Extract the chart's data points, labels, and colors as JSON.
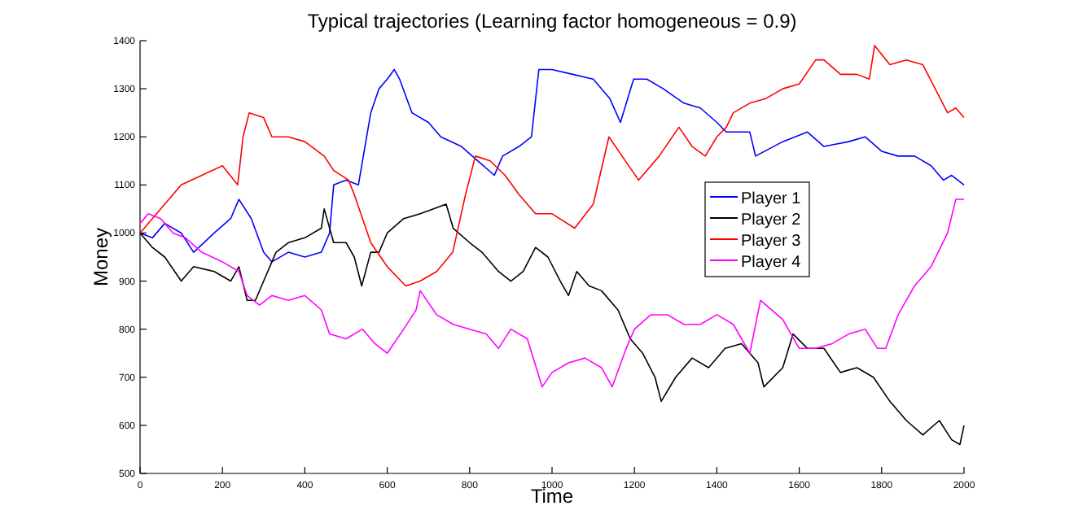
{
  "chart_data": {
    "type": "line",
    "title": "Typical trajectories (Learning factor homogeneous = 0.9)",
    "xlabel": "Time",
    "ylabel": "Money",
    "xlim": [
      0,
      2000
    ],
    "ylim": [
      500,
      1400
    ],
    "xticks": [
      0,
      200,
      400,
      600,
      800,
      1000,
      1200,
      1400,
      1600,
      1800,
      2000
    ],
    "yticks": [
      500,
      600,
      700,
      800,
      900,
      1000,
      1100,
      1200,
      1300,
      1400
    ],
    "grid": false,
    "legend": "right",
    "marker": "none",
    "line_style": "solid",
    "series": [
      {
        "name": "Player 1",
        "color": "#0000ff",
        "x": [
          0,
          30,
          60,
          100,
          130,
          180,
          220,
          240,
          270,
          300,
          320,
          360,
          400,
          440,
          460,
          470,
          500,
          530,
          560,
          580,
          600,
          617,
          630,
          660,
          700,
          730,
          780,
          820,
          860,
          880,
          920,
          950,
          968,
          1000,
          1050,
          1100,
          1140,
          1166,
          1198,
          1230,
          1270,
          1320,
          1360,
          1400,
          1423,
          1480,
          1494,
          1560,
          1620,
          1660,
          1720,
          1760,
          1800,
          1840,
          1880,
          1920,
          1950,
          1970,
          2000
        ],
        "values": [
          1000,
          990,
          1020,
          1000,
          960,
          1000,
          1030,
          1070,
          1030,
          960,
          940,
          960,
          950,
          960,
          1000,
          1100,
          1110,
          1100,
          1250,
          1300,
          1320,
          1340,
          1320,
          1250,
          1230,
          1200,
          1180,
          1150,
          1120,
          1160,
          1180,
          1200,
          1340,
          1340,
          1330,
          1320,
          1280,
          1230,
          1320,
          1320,
          1300,
          1270,
          1260,
          1230,
          1210,
          1210,
          1160,
          1190,
          1210,
          1180,
          1190,
          1200,
          1170,
          1160,
          1160,
          1140,
          1110,
          1120,
          1100
        ]
      },
      {
        "name": "Player 2",
        "color": "#000000",
        "x": [
          0,
          30,
          60,
          100,
          130,
          180,
          220,
          240,
          260,
          280,
          300,
          330,
          360,
          400,
          440,
          447,
          470,
          500,
          520,
          538,
          560,
          580,
          600,
          640,
          680,
          743,
          760,
          800,
          830,
          870,
          900,
          930,
          960,
          990,
          1020,
          1040,
          1060,
          1090,
          1120,
          1160,
          1190,
          1220,
          1250,
          1265,
          1300,
          1340,
          1380,
          1420,
          1460,
          1500,
          1514,
          1560,
          1585,
          1620,
          1660,
          1700,
          1740,
          1780,
          1820,
          1860,
          1900,
          1940,
          1970,
          1990,
          2000
        ],
        "values": [
          1000,
          970,
          950,
          900,
          930,
          920,
          900,
          930,
          860,
          860,
          900,
          960,
          980,
          990,
          1010,
          1050,
          980,
          980,
          950,
          890,
          960,
          960,
          1000,
          1030,
          1040,
          1060,
          1010,
          980,
          960,
          920,
          900,
          920,
          970,
          950,
          900,
          870,
          920,
          890,
          880,
          840,
          780,
          750,
          700,
          650,
          700,
          740,
          720,
          760,
          770,
          730,
          680,
          720,
          790,
          760,
          760,
          710,
          720,
          700,
          650,
          610,
          580,
          610,
          570,
          560,
          600
        ]
      },
      {
        "name": "Player 3",
        "color": "#ff0000",
        "x": [
          0,
          30,
          60,
          100,
          150,
          200,
          237,
          250,
          265,
          300,
          320,
          360,
          400,
          447,
          470,
          506,
          520,
          560,
          600,
          645,
          680,
          720,
          759,
          790,
          814,
          850,
          886,
          920,
          960,
          1000,
          1055,
          1100,
          1138,
          1170,
          1210,
          1260,
          1308,
          1340,
          1372,
          1400,
          1423,
          1440,
          1480,
          1520,
          1560,
          1600,
          1640,
          1660,
          1700,
          1740,
          1770,
          1783,
          1820,
          1860,
          1900,
          1930,
          1960,
          1980,
          2000
        ],
        "values": [
          1000,
          1030,
          1060,
          1100,
          1120,
          1140,
          1100,
          1200,
          1250,
          1240,
          1200,
          1200,
          1190,
          1160,
          1130,
          1110,
          1080,
          980,
          930,
          890,
          900,
          920,
          960,
          1080,
          1160,
          1150,
          1120,
          1080,
          1040,
          1040,
          1010,
          1060,
          1200,
          1160,
          1110,
          1160,
          1220,
          1180,
          1160,
          1200,
          1220,
          1250,
          1270,
          1280,
          1300,
          1310,
          1360,
          1360,
          1330,
          1330,
          1320,
          1390,
          1350,
          1360,
          1350,
          1300,
          1250,
          1260,
          1240
        ]
      },
      {
        "name": "Player 4",
        "color": "#ff00ff",
        "x": [
          0,
          20,
          50,
          80,
          110,
          150,
          200,
          240,
          260,
          290,
          320,
          360,
          400,
          440,
          460,
          500,
          540,
          570,
          600,
          640,
          670,
          680,
          720,
          760,
          800,
          840,
          870,
          900,
          940,
          976,
          1000,
          1040,
          1080,
          1120,
          1146,
          1180,
          1200,
          1240,
          1280,
          1320,
          1360,
          1400,
          1440,
          1480,
          1506,
          1560,
          1600,
          1640,
          1680,
          1720,
          1760,
          1790,
          1810,
          1840,
          1880,
          1920,
          1960,
          1980,
          2000
        ],
        "values": [
          1020,
          1040,
          1030,
          1000,
          990,
          960,
          940,
          920,
          870,
          850,
          870,
          860,
          870,
          840,
          790,
          780,
          800,
          770,
          750,
          800,
          840,
          880,
          830,
          810,
          800,
          790,
          760,
          800,
          780,
          680,
          710,
          730,
          740,
          720,
          680,
          760,
          800,
          830,
          830,
          810,
          810,
          830,
          810,
          750,
          860,
          820,
          760,
          760,
          770,
          790,
          800,
          760,
          760,
          830,
          890,
          930,
          1000,
          1070,
          1070
        ]
      }
    ]
  }
}
